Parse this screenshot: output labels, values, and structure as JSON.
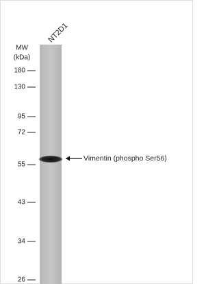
{
  "lane_label": "NT2D1",
  "mw_label": "MW",
  "unit_label": "(kDa)",
  "markers": [
    "180",
    "130",
    "95",
    "72",
    "55",
    "43",
    "34",
    "26"
  ],
  "band_label": "Vimentin (phospho Ser56)"
}
